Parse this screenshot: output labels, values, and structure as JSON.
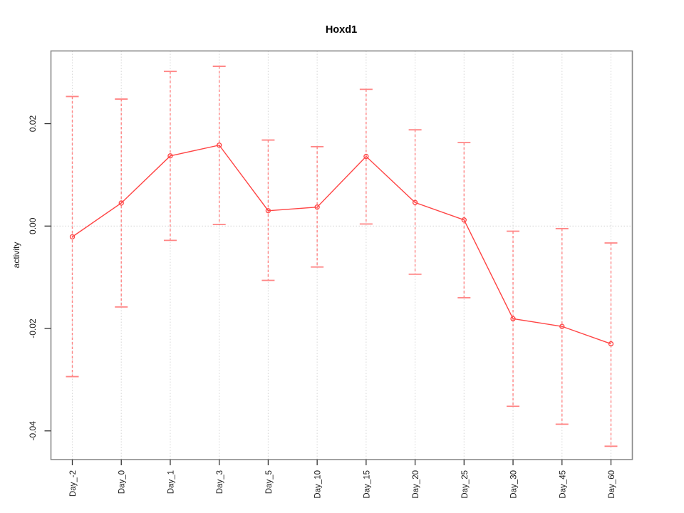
{
  "chart_data": {
    "type": "line",
    "title": "Hoxd1",
    "xlabel": "",
    "ylabel": "activity",
    "categories": [
      "Day_-2",
      "Day_0",
      "Day_1",
      "Day_3",
      "Day_5",
      "Day_10",
      "Day_15",
      "Day_20",
      "Day_25",
      "Day_30",
      "Day_45",
      "Day_60"
    ],
    "series": [
      {
        "name": "activity",
        "values": [
          -0.0021,
          0.0045,
          0.0137,
          0.0158,
          0.003,
          0.0037,
          0.0136,
          0.0046,
          0.0012,
          -0.0181,
          -0.0196,
          -0.023
        ]
      }
    ],
    "error_high": [
      0.0253,
      0.0248,
      0.0302,
      0.0312,
      0.0168,
      0.0155,
      0.0267,
      0.0188,
      0.0163,
      -0.001,
      -0.0005,
      -0.0033
    ],
    "error_low": [
      -0.0294,
      -0.0158,
      -0.0028,
      0.0003,
      -0.0106,
      -0.008,
      0.0004,
      -0.0094,
      -0.014,
      -0.0352,
      -0.0387,
      -0.043
    ],
    "ylim": [
      -0.0456,
      0.0342
    ],
    "yticks": [
      0.02,
      0.0,
      -0.02,
      -0.04
    ],
    "ytick_labels": [
      "0.02",
      "0.00",
      "-0.02",
      "-0.04"
    ],
    "marker": "open-circle",
    "error_bar_style": "dashed-stem-with-caps",
    "grid": {
      "vertical_dotted_at_each_category": true,
      "horizontal_dotted_at_zero": true
    },
    "legend": "none",
    "colors": {
      "series": "#ff4444",
      "error_bar": "#ff8585",
      "grid": "#d9d9d9",
      "box": "#8a8a8a",
      "tick": "#333333",
      "text": "#1a1a1a",
      "background": "#ffffff"
    }
  }
}
